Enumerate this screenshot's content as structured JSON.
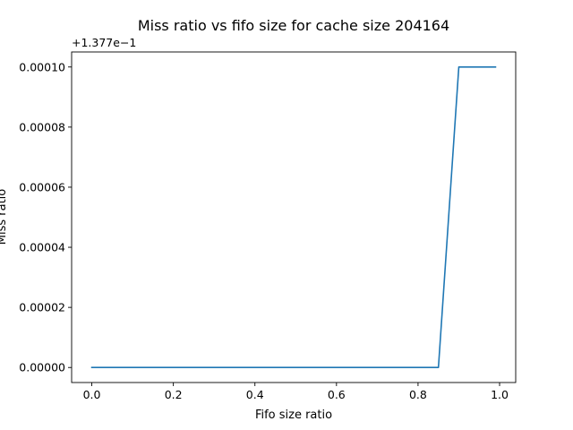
{
  "chart_data": {
    "type": "line",
    "title": "Miss ratio vs fifo size for cache size 204164",
    "xlabel": "Fifo size ratio",
    "ylabel": "Miss ratio",
    "y_offset_label": "+1.377e−1",
    "xlim": [
      -0.0495,
      1.0395
    ],
    "ylim": [
      -5e-06,
      0.000105
    ],
    "xticks": [
      0.0,
      0.2,
      0.4,
      0.6,
      0.8,
      1.0
    ],
    "xtick_labels": [
      "0.0",
      "0.2",
      "0.4",
      "0.6",
      "0.8",
      "1.0"
    ],
    "yticks": [
      0.0,
      2e-05,
      4e-05,
      6e-05,
      8e-05,
      0.0001
    ],
    "ytick_labels": [
      "0.00000",
      "0.00002",
      "0.00004",
      "0.00006",
      "0.00008",
      "0.00010"
    ],
    "grid": false,
    "series": [
      {
        "color": "#1f77b4",
        "x": [
          0.0,
          0.05,
          0.1,
          0.15,
          0.2,
          0.25,
          0.3,
          0.35,
          0.4,
          0.45,
          0.5,
          0.55,
          0.6,
          0.65,
          0.7,
          0.75,
          0.8,
          0.85,
          0.9,
          0.95,
          0.99
        ],
        "y": [
          0.0,
          0.0,
          0.0,
          0.0,
          0.0,
          0.0,
          0.0,
          0.0,
          0.0,
          0.0,
          0.0,
          0.0,
          0.0,
          0.0,
          0.0,
          0.0,
          0.0,
          0.0,
          0.0001,
          0.0001,
          0.0001
        ]
      }
    ]
  }
}
